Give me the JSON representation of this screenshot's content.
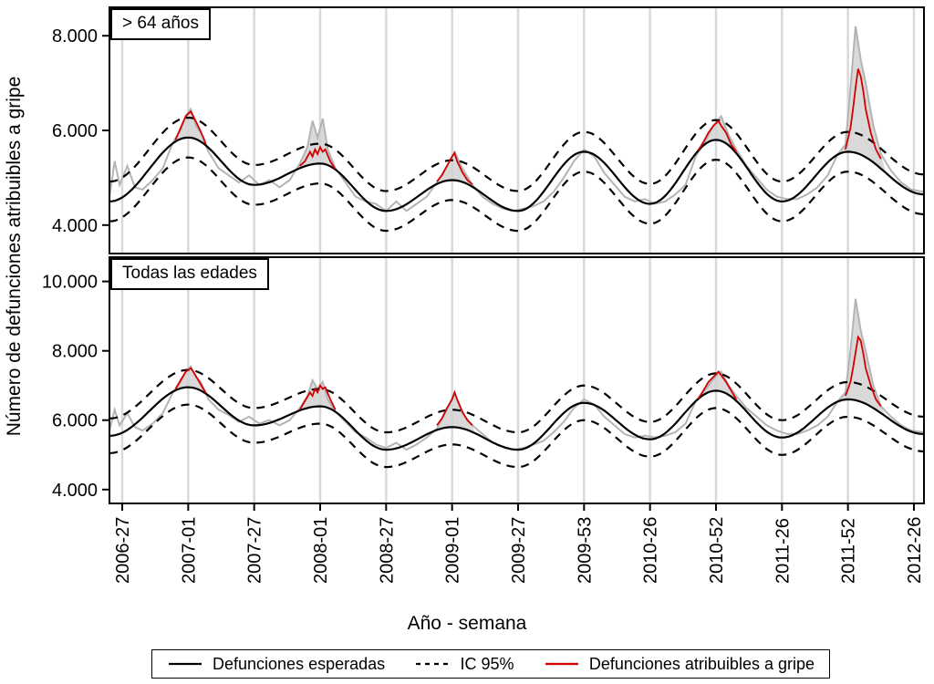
{
  "figure": {
    "y_axis_label": "Número de defunciones atribuibles a gripe",
    "x_axis_label": "Año - semana",
    "colors": {
      "expected": "#000000",
      "ci": "#000000",
      "observed": "#b4b4b4",
      "attributable": "#d40000",
      "grid": "#d9d9d9",
      "shade": "#cfcfcf",
      "frame": "#000000"
    }
  },
  "legend": {
    "items": [
      {
        "label": "Defunciones esperadas",
        "style": "solid",
        "color": "#000000"
      },
      {
        "label": "IC 95%",
        "style": "dashed",
        "color": "#000000"
      },
      {
        "label": "Defunciones atribuibles a gripe",
        "style": "solid",
        "color": "#d40000"
      }
    ]
  },
  "x_ticks": {
    "positions": [
      0,
      26,
      52,
      78,
      104,
      130,
      156,
      182,
      208,
      234,
      260,
      286,
      312
    ],
    "labels": [
      "2006-27",
      "2007-01",
      "2007-27",
      "2008-01",
      "2008-27",
      "2009-01",
      "2009-27",
      "2009-53",
      "2010-26",
      "2010-52",
      "2011-26",
      "2011-52",
      "2012-26"
    ]
  },
  "chart_data": [
    {
      "type": "line",
      "title": "> 64 años",
      "xlabel": "Año - semana",
      "ylabel": "Número de defunciones atribuibles a gripe",
      "ylim": [
        3.4,
        8.6
      ],
      "y_ticks": [
        4,
        6,
        8
      ],
      "y_tick_labels": [
        "4.000",
        "6.000",
        "8.000"
      ],
      "ci_width": 0.42,
      "expected_anchors": [
        [
          -5,
          4.5
        ],
        [
          26,
          5.85
        ],
        [
          52,
          4.85
        ],
        [
          78,
          5.3
        ],
        [
          104,
          4.3
        ],
        [
          130,
          4.95
        ],
        [
          156,
          4.3
        ],
        [
          182,
          5.55
        ],
        [
          208,
          4.45
        ],
        [
          234,
          5.8
        ],
        [
          260,
          4.5
        ],
        [
          286,
          5.55
        ],
        [
          316,
          4.65
        ]
      ],
      "observed": [
        [
          -5,
          4.6
        ],
        [
          -3,
          5.35
        ],
        [
          -1,
          4.85
        ],
        [
          2,
          5.25
        ],
        [
          5,
          4.8
        ],
        [
          8,
          4.75
        ],
        [
          12,
          4.95
        ],
        [
          16,
          5.2
        ],
        [
          20,
          5.75
        ],
        [
          23,
          6.0
        ],
        [
          25,
          6.3
        ],
        [
          27,
          6.45
        ],
        [
          29,
          6.1
        ],
        [
          31,
          5.95
        ],
        [
          34,
          5.55
        ],
        [
          38,
          5.2
        ],
        [
          42,
          5.05
        ],
        [
          46,
          4.9
        ],
        [
          50,
          5.05
        ],
        [
          54,
          4.85
        ],
        [
          58,
          4.95
        ],
        [
          62,
          4.8
        ],
        [
          66,
          4.95
        ],
        [
          70,
          5.3
        ],
        [
          73,
          5.65
        ],
        [
          75,
          6.2
        ],
        [
          77,
          5.85
        ],
        [
          79,
          6.25
        ],
        [
          81,
          5.6
        ],
        [
          84,
          5.2
        ],
        [
          88,
          4.9
        ],
        [
          92,
          4.6
        ],
        [
          96,
          4.5
        ],
        [
          100,
          4.45
        ],
        [
          104,
          4.3
        ],
        [
          108,
          4.5
        ],
        [
          112,
          4.3
        ],
        [
          116,
          4.45
        ],
        [
          120,
          4.6
        ],
        [
          124,
          4.9
        ],
        [
          128,
          5.25
        ],
        [
          131,
          5.55
        ],
        [
          134,
          5.2
        ],
        [
          138,
          4.85
        ],
        [
          142,
          4.6
        ],
        [
          146,
          4.45
        ],
        [
          150,
          4.35
        ],
        [
          154,
          4.3
        ],
        [
          158,
          4.35
        ],
        [
          162,
          4.4
        ],
        [
          166,
          4.5
        ],
        [
          170,
          4.7
        ],
        [
          174,
          5.0
        ],
        [
          178,
          5.35
        ],
        [
          182,
          5.6
        ],
        [
          186,
          5.45
        ],
        [
          190,
          5.1
        ],
        [
          194,
          4.85
        ],
        [
          198,
          4.6
        ],
        [
          202,
          4.5
        ],
        [
          206,
          4.55
        ],
        [
          210,
          4.45
        ],
        [
          214,
          4.5
        ],
        [
          218,
          4.65
        ],
        [
          222,
          4.85
        ],
        [
          226,
          5.45
        ],
        [
          230,
          5.8
        ],
        [
          233,
          6.1
        ],
        [
          236,
          6.3
        ],
        [
          239,
          5.9
        ],
        [
          242,
          5.6
        ],
        [
          246,
          5.25
        ],
        [
          250,
          5.0
        ],
        [
          254,
          4.75
        ],
        [
          258,
          4.6
        ],
        [
          262,
          4.55
        ],
        [
          266,
          4.55
        ],
        [
          270,
          4.65
        ],
        [
          274,
          4.8
        ],
        [
          278,
          5.05
        ],
        [
          282,
          5.5
        ],
        [
          285,
          5.7
        ],
        [
          287,
          6.9
        ],
        [
          289,
          8.2
        ],
        [
          291,
          7.5
        ],
        [
          293,
          7.0
        ],
        [
          296,
          6.1
        ],
        [
          299,
          5.5
        ],
        [
          303,
          5.15
        ],
        [
          307,
          4.9
        ],
        [
          311,
          4.75
        ],
        [
          316,
          4.7
        ]
      ],
      "attributable_segments": [
        [
          [
            21,
            5.8
          ],
          [
            23,
            6.05
          ],
          [
            25,
            6.3
          ],
          [
            26,
            6.35
          ],
          [
            27,
            6.4
          ],
          [
            28,
            6.3
          ],
          [
            30,
            6.08
          ],
          [
            32,
            5.85
          ],
          [
            33,
            5.7
          ]
        ],
        [
          [
            70,
            5.25
          ],
          [
            72,
            5.35
          ],
          [
            74,
            5.55
          ],
          [
            75,
            5.45
          ],
          [
            76,
            5.6
          ],
          [
            77,
            5.5
          ],
          [
            78,
            5.65
          ],
          [
            79,
            5.55
          ],
          [
            80,
            5.6
          ],
          [
            82,
            5.35
          ],
          [
            84,
            5.18
          ]
        ],
        [
          [
            124,
            4.92
          ],
          [
            126,
            5.05
          ],
          [
            128,
            5.25
          ],
          [
            130,
            5.45
          ],
          [
            131,
            5.52
          ],
          [
            132,
            5.35
          ],
          [
            134,
            5.12
          ],
          [
            136,
            4.95
          ],
          [
            138,
            4.86
          ]
        ],
        [
          [
            227,
            5.58
          ],
          [
            229,
            5.75
          ],
          [
            231,
            5.95
          ],
          [
            233,
            6.1
          ],
          [
            235,
            6.2
          ],
          [
            236,
            6.1
          ],
          [
            238,
            5.95
          ],
          [
            240,
            5.7
          ],
          [
            242,
            5.55
          ]
        ],
        [
          [
            285,
            5.6
          ],
          [
            287,
            6.05
          ],
          [
            288,
            6.45
          ],
          [
            289,
            6.9
          ],
          [
            290,
            7.3
          ],
          [
            291,
            7.15
          ],
          [
            292,
            6.85
          ],
          [
            293,
            6.45
          ],
          [
            295,
            5.95
          ],
          [
            297,
            5.6
          ],
          [
            299,
            5.4
          ]
        ]
      ],
      "shade_ranges": [
        [
          20,
          34
        ],
        [
          69,
          85
        ],
        [
          123,
          139
        ],
        [
          226,
          243
        ],
        [
          281,
          301
        ]
      ]
    },
    {
      "type": "line",
      "title": "Todas las edades",
      "xlabel": "Año - semana",
      "ylabel": "Número de defunciones atribuibles a gripe",
      "ylim": [
        3.6,
        10.7
      ],
      "y_ticks": [
        4,
        6,
        8,
        10
      ],
      "y_tick_labels": [
        "4.000",
        "6.000",
        "8.000",
        "10.000"
      ],
      "ci_width": 0.5,
      "expected_anchors": [
        [
          -5,
          5.55
        ],
        [
          26,
          6.95
        ],
        [
          52,
          5.85
        ],
        [
          78,
          6.4
        ],
        [
          104,
          5.15
        ],
        [
          130,
          5.8
        ],
        [
          156,
          5.15
        ],
        [
          182,
          6.5
        ],
        [
          208,
          5.45
        ],
        [
          234,
          6.85
        ],
        [
          260,
          5.5
        ],
        [
          286,
          6.6
        ],
        [
          316,
          5.6
        ]
      ],
      "observed": [
        [
          -5,
          5.7
        ],
        [
          -3,
          6.3
        ],
        [
          -1,
          5.85
        ],
        [
          2,
          6.2
        ],
        [
          5,
          5.8
        ],
        [
          8,
          5.7
        ],
        [
          12,
          5.9
        ],
        [
          16,
          6.2
        ],
        [
          20,
          6.8
        ],
        [
          23,
          7.1
        ],
        [
          25,
          7.4
        ],
        [
          27,
          7.55
        ],
        [
          29,
          7.25
        ],
        [
          31,
          7.1
        ],
        [
          34,
          6.6
        ],
        [
          38,
          6.3
        ],
        [
          42,
          6.15
        ],
        [
          46,
          5.95
        ],
        [
          50,
          6.1
        ],
        [
          54,
          5.9
        ],
        [
          58,
          6.0
        ],
        [
          62,
          5.85
        ],
        [
          66,
          6.0
        ],
        [
          70,
          6.35
        ],
        [
          73,
          6.7
        ],
        [
          75,
          7.15
        ],
        [
          77,
          6.9
        ],
        [
          79,
          7.1
        ],
        [
          81,
          6.6
        ],
        [
          84,
          6.25
        ],
        [
          88,
          5.95
        ],
        [
          92,
          5.65
        ],
        [
          96,
          5.5
        ],
        [
          100,
          5.3
        ],
        [
          104,
          5.2
        ],
        [
          108,
          5.35
        ],
        [
          112,
          5.15
        ],
        [
          116,
          5.3
        ],
        [
          120,
          5.5
        ],
        [
          124,
          5.75
        ],
        [
          128,
          6.3
        ],
        [
          131,
          6.8
        ],
        [
          134,
          6.2
        ],
        [
          138,
          5.85
        ],
        [
          142,
          5.6
        ],
        [
          146,
          5.35
        ],
        [
          150,
          5.25
        ],
        [
          154,
          5.15
        ],
        [
          158,
          5.2
        ],
        [
          162,
          5.3
        ],
        [
          166,
          5.4
        ],
        [
          170,
          5.65
        ],
        [
          174,
          5.95
        ],
        [
          178,
          6.35
        ],
        [
          182,
          6.6
        ],
        [
          186,
          6.45
        ],
        [
          190,
          6.1
        ],
        [
          194,
          5.85
        ],
        [
          198,
          5.6
        ],
        [
          202,
          5.5
        ],
        [
          206,
          5.55
        ],
        [
          210,
          5.5
        ],
        [
          214,
          5.55
        ],
        [
          218,
          5.65
        ],
        [
          222,
          5.9
        ],
        [
          226,
          6.55
        ],
        [
          230,
          6.9
        ],
        [
          233,
          7.2
        ],
        [
          236,
          7.4
        ],
        [
          239,
          7.0
        ],
        [
          242,
          6.7
        ],
        [
          246,
          6.35
        ],
        [
          250,
          6.1
        ],
        [
          254,
          5.85
        ],
        [
          258,
          5.7
        ],
        [
          262,
          5.6
        ],
        [
          266,
          5.6
        ],
        [
          270,
          5.7
        ],
        [
          274,
          5.85
        ],
        [
          278,
          6.1
        ],
        [
          282,
          6.55
        ],
        [
          285,
          6.8
        ],
        [
          287,
          8.0
        ],
        [
          289,
          9.5
        ],
        [
          291,
          8.6
        ],
        [
          293,
          8.0
        ],
        [
          296,
          7.0
        ],
        [
          299,
          6.4
        ],
        [
          303,
          6.1
        ],
        [
          307,
          5.85
        ],
        [
          311,
          5.7
        ],
        [
          316,
          5.65
        ]
      ],
      "attributable_segments": [
        [
          [
            21,
            6.9
          ],
          [
            23,
            7.15
          ],
          [
            25,
            7.4
          ],
          [
            26,
            7.45
          ],
          [
            27,
            7.5
          ],
          [
            28,
            7.4
          ],
          [
            30,
            7.15
          ],
          [
            32,
            6.9
          ],
          [
            33,
            6.78
          ]
        ],
        [
          [
            70,
            6.3
          ],
          [
            72,
            6.55
          ],
          [
            74,
            6.8
          ],
          [
            75,
            6.7
          ],
          [
            76,
            6.9
          ],
          [
            77,
            6.8
          ],
          [
            78,
            7.0
          ],
          [
            79,
            6.9
          ],
          [
            80,
            6.95
          ],
          [
            82,
            6.6
          ],
          [
            84,
            6.3
          ]
        ],
        [
          [
            124,
            5.85
          ],
          [
            126,
            6.05
          ],
          [
            128,
            6.35
          ],
          [
            130,
            6.6
          ],
          [
            131,
            6.8
          ],
          [
            132,
            6.6
          ],
          [
            134,
            6.25
          ],
          [
            136,
            6.0
          ],
          [
            138,
            5.85
          ]
        ],
        [
          [
            227,
            6.62
          ],
          [
            229,
            6.85
          ],
          [
            231,
            7.1
          ],
          [
            233,
            7.25
          ],
          [
            235,
            7.4
          ],
          [
            236,
            7.3
          ],
          [
            238,
            7.1
          ],
          [
            240,
            6.85
          ],
          [
            242,
            6.6
          ]
        ],
        [
          [
            285,
            6.7
          ],
          [
            287,
            7.1
          ],
          [
            288,
            7.5
          ],
          [
            289,
            7.95
          ],
          [
            290,
            8.4
          ],
          [
            291,
            8.3
          ],
          [
            292,
            7.95
          ],
          [
            293,
            7.5
          ],
          [
            295,
            7.0
          ],
          [
            297,
            6.6
          ],
          [
            299,
            6.4
          ]
        ]
      ],
      "shade_ranges": [
        [
          20,
          34
        ],
        [
          69,
          85
        ],
        [
          123,
          139
        ],
        [
          226,
          243
        ],
        [
          281,
          301
        ]
      ]
    }
  ]
}
